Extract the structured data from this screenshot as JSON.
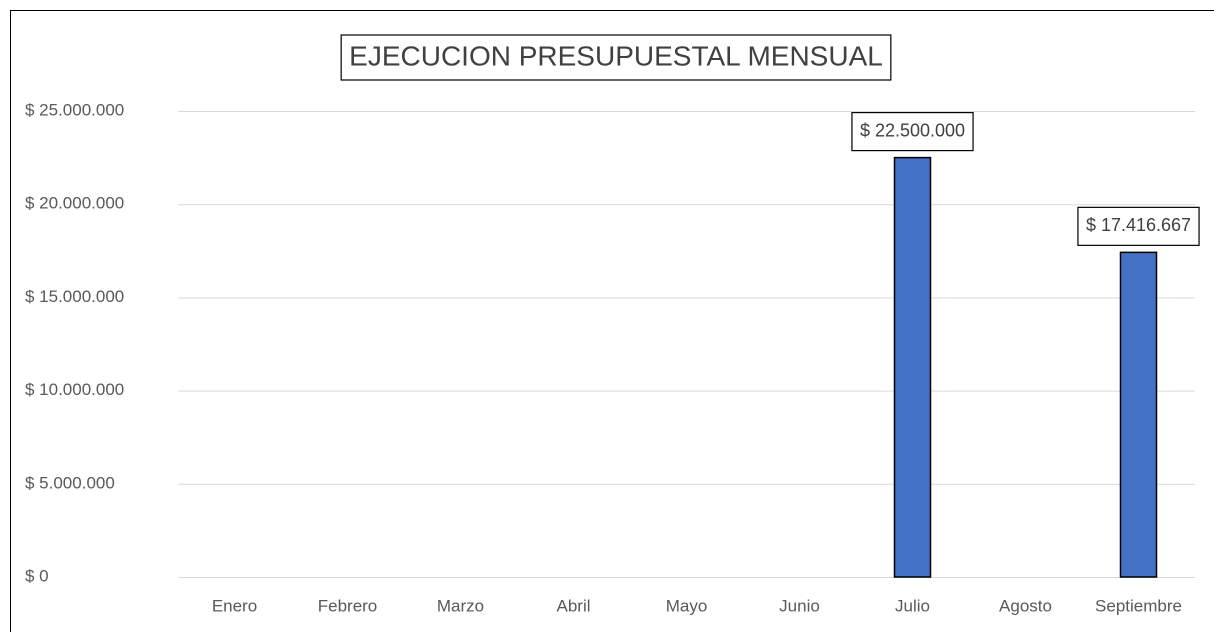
{
  "chart_data": {
    "type": "bar",
    "title": "EJECUCION PRESUPUESTAL MENSUAL",
    "categories": [
      "Enero",
      "Febrero",
      "Marzo",
      "Abril",
      "Mayo",
      "Junio",
      "Julio",
      "Agosto",
      "Septiembre"
    ],
    "values": [
      null,
      null,
      null,
      null,
      null,
      null,
      22500000,
      null,
      17416667
    ],
    "value_labels": [
      null,
      null,
      null,
      null,
      null,
      null,
      "$ 22.500.000",
      null,
      "$ 17.416.667"
    ],
    "color": "#4472c4",
    "ylim": [
      0,
      25000000
    ],
    "yticks": [
      {
        "value": 0,
        "label": "$ 0"
      },
      {
        "value": 5000000,
        "label": "$ 5.000.000"
      },
      {
        "value": 10000000,
        "label": "$ 10.000.000"
      },
      {
        "value": 15000000,
        "label": "$ 15.000.000"
      },
      {
        "value": 20000000,
        "label": "$ 20.000.000"
      },
      {
        "value": 25000000,
        "label": "$ 25.000.000"
      }
    ],
    "grid": true
  }
}
